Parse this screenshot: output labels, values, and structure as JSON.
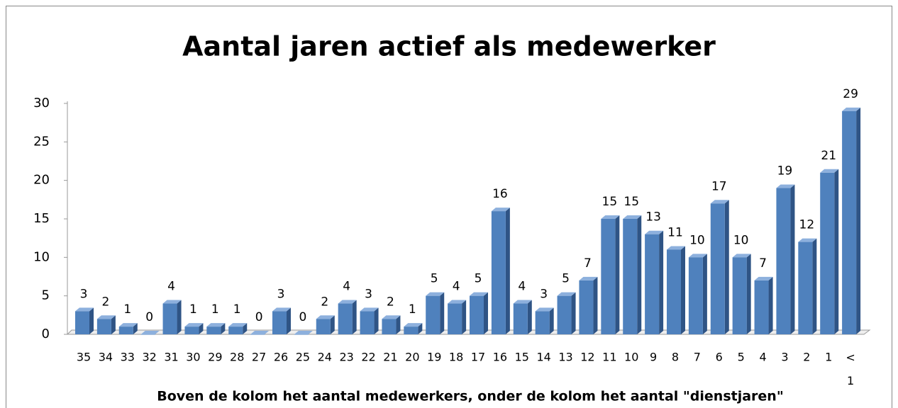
{
  "chart_data": {
    "type": "bar3d",
    "title": "Aantal jaren actief als medewerker",
    "x_label": "Boven de kolom het aantal medewerkers, onder de kolom het aantal  \"dienstjaren\"",
    "categories": [
      "35",
      "34",
      "33",
      "32",
      "31",
      "30",
      "29",
      "28",
      "27",
      "26",
      "25",
      "24",
      "23",
      "22",
      "21",
      "20",
      "19",
      "18",
      "17",
      "16",
      "15",
      "14",
      "13",
      "12",
      "11",
      "10",
      "9",
      "8",
      "7",
      "6",
      "5",
      "4",
      "3",
      "2",
      "1",
      "< 1"
    ],
    "values": [
      3,
      2,
      1,
      0,
      4,
      1,
      1,
      1,
      0,
      3,
      0,
      2,
      4,
      3,
      2,
      1,
      5,
      4,
      5,
      16,
      4,
      3,
      5,
      7,
      15,
      15,
      13,
      11,
      10,
      17,
      10,
      7,
      19,
      12,
      21,
      29
    ],
    "color": "#4f81bd",
    "ylim": [
      0,
      30
    ],
    "yticks": [
      0,
      5,
      10,
      15,
      20,
      25,
      30
    ]
  }
}
